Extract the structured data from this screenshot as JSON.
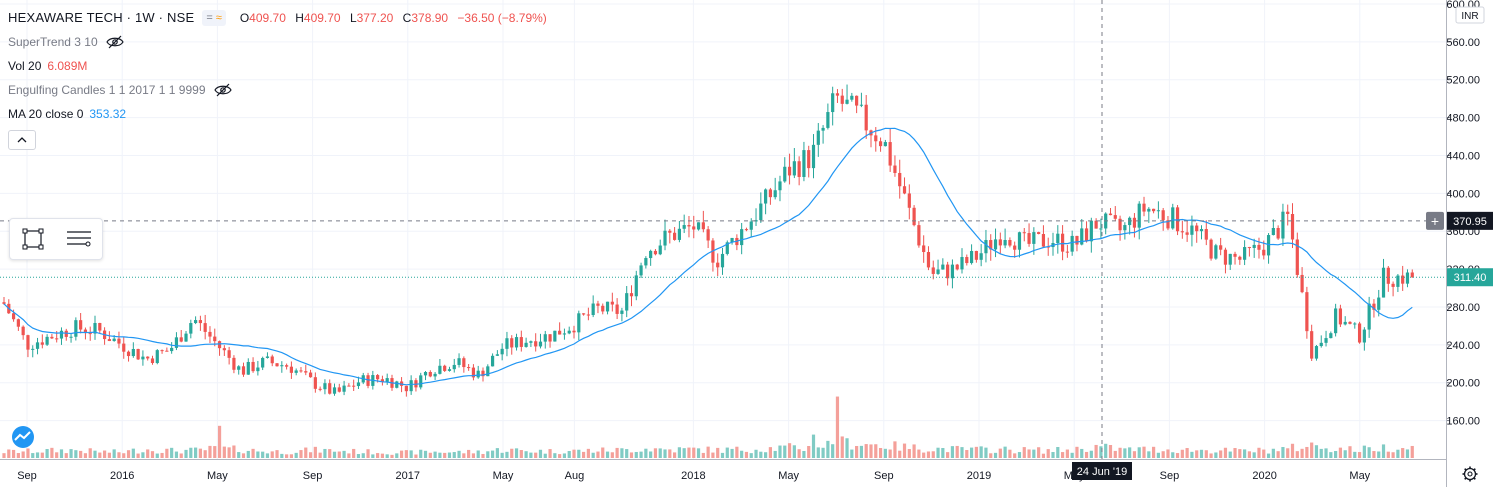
{
  "header": {
    "symbol": "HEXAWARE TECH · 1W · NSE",
    "ohlc": [
      {
        "label": "O",
        "value": "409.70"
      },
      {
        "label": "H",
        "value": "409.70"
      },
      {
        "label": "L",
        "value": "377.20"
      },
      {
        "label": "C",
        "value": "378.90"
      }
    ],
    "change": "−36.50 (−8.79%)"
  },
  "indicators": {
    "supertrend": {
      "name": "SuperTrend 3 10"
    },
    "volume": {
      "name": "Vol 20",
      "value": "6.089M"
    },
    "engulfing": {
      "name": "Engulfing Candles 1 1 2017 1 1 9999"
    },
    "ma": {
      "name": "MA 20 close 0",
      "value": "353.32"
    }
  },
  "currency": "INR",
  "crosshair": {
    "date_label": "24 Jun '19",
    "price_label": "370.95",
    "price": 370.95
  },
  "last_price": {
    "label": "311.40",
    "value": 311.4
  },
  "colors": {
    "up": "#26a69a",
    "down": "#ef5350",
    "ma": "#2196f3",
    "vol_up": "#80cbc4",
    "vol_down": "#f4a09a",
    "grid": "#f0f3fa"
  },
  "chart_data": {
    "type": "candlestick",
    "timeframe": "1W",
    "ylim": [
      140,
      600
    ],
    "y_ticks": [
      "160.00",
      "200.00",
      "240.00",
      "280.00",
      "320.00",
      "360.00",
      "400.00",
      "440.00",
      "480.00",
      "520.00",
      "560.00",
      "600.00"
    ],
    "x_ticks": [
      {
        "label": "Sep",
        "date": "2015-09"
      },
      {
        "label": "2016",
        "date": "2016-01"
      },
      {
        "label": "May",
        "date": "2016-05"
      },
      {
        "label": "Sep",
        "date": "2016-09"
      },
      {
        "label": "2017",
        "date": "2017-01"
      },
      {
        "label": "May",
        "date": "2017-05"
      },
      {
        "label": "Aug",
        "date": "2017-08"
      },
      {
        "label": "2018",
        "date": "2018-01"
      },
      {
        "label": "May",
        "date": "2018-05"
      },
      {
        "label": "Sep",
        "date": "2018-09"
      },
      {
        "label": "2019",
        "date": "2019-01"
      },
      {
        "label": "May",
        "date": "2019-05"
      },
      {
        "label": "Sep",
        "date": "2019-09"
      },
      {
        "label": "2020",
        "date": "2020-01"
      },
      {
        "label": "May",
        "date": "2020-05"
      }
    ],
    "anchors": [
      [
        "2015-08",
        285,
        0.3
      ],
      [
        "2015-09",
        240,
        0.32
      ],
      [
        "2015-11",
        258,
        0.38
      ],
      [
        "2015-12",
        255,
        0.3
      ],
      [
        "2016-01",
        240,
        0.28
      ],
      [
        "2016-02",
        225,
        0.42
      ],
      [
        "2016-03",
        235,
        0.35
      ],
      [
        "2016-04",
        268,
        0.36
      ],
      [
        "2016-05",
        240,
        0.45
      ],
      [
        "2016-06",
        212,
        0.4
      ],
      [
        "2016-07",
        222,
        0.32
      ],
      [
        "2016-08",
        218,
        0.3
      ],
      [
        "2016-09",
        200,
        0.38
      ],
      [
        "2016-10",
        188,
        0.35
      ],
      [
        "2016-11",
        202,
        0.3
      ],
      [
        "2016-12",
        205,
        0.28
      ],
      [
        "2017-01",
        195,
        0.26
      ],
      [
        "2017-02",
        215,
        0.3
      ],
      [
        "2017-03",
        222,
        0.28
      ],
      [
        "2017-04",
        208,
        0.3
      ],
      [
        "2017-05",
        238,
        0.4
      ],
      [
        "2017-06",
        245,
        0.34
      ],
      [
        "2017-07",
        250,
        0.32
      ],
      [
        "2017-08",
        262,
        0.34
      ],
      [
        "2017-09",
        278,
        0.36
      ],
      [
        "2017-10",
        275,
        0.38
      ],
      [
        "2017-11",
        340,
        0.45
      ],
      [
        "2017-12",
        355,
        0.4
      ],
      [
        "2018-01",
        365,
        0.42
      ],
      [
        "2018-02",
        330,
        0.38
      ],
      [
        "2018-03",
        360,
        0.4
      ],
      [
        "2018-04",
        390,
        0.45
      ],
      [
        "2018-05",
        425,
        0.5
      ],
      [
        "2018-06",
        440,
        0.48
      ],
      [
        "2018-07",
        500,
        0.75
      ],
      [
        "2018-08",
        480,
        0.7
      ],
      [
        "2018-09",
        455,
        0.6
      ],
      [
        "2018-10",
        385,
        0.5
      ],
      [
        "2018-11",
        315,
        0.45
      ],
      [
        "2018-12",
        320,
        0.42
      ],
      [
        "2019-01",
        335,
        0.4
      ],
      [
        "2019-02",
        360,
        0.4
      ],
      [
        "2019-03",
        345,
        0.38
      ],
      [
        "2019-04",
        352,
        0.36
      ],
      [
        "2019-05",
        345,
        0.4
      ],
      [
        "2019-06",
        370,
        0.55
      ],
      [
        "2019-07",
        360,
        0.4
      ],
      [
        "2019-08",
        385,
        0.42
      ],
      [
        "2019-09",
        375,
        0.4
      ],
      [
        "2019-10",
        360,
        0.38
      ],
      [
        "2019-11",
        335,
        0.36
      ],
      [
        "2019-12",
        330,
        0.34
      ],
      [
        "2020-01",
        345,
        0.36
      ],
      [
        "2020-02",
        375,
        0.45
      ],
      [
        "2020-03",
        230,
        0.6
      ],
      [
        "2020-04",
        270,
        0.45
      ],
      [
        "2020-05",
        250,
        0.4
      ],
      [
        "2020-06",
        311.4,
        0.5
      ]
    ],
    "volume_spikes": {
      "2016-05": 2.2,
      "2018-07": 4.2,
      "2018-06": 1.6
    },
    "ma_period": 20
  }
}
